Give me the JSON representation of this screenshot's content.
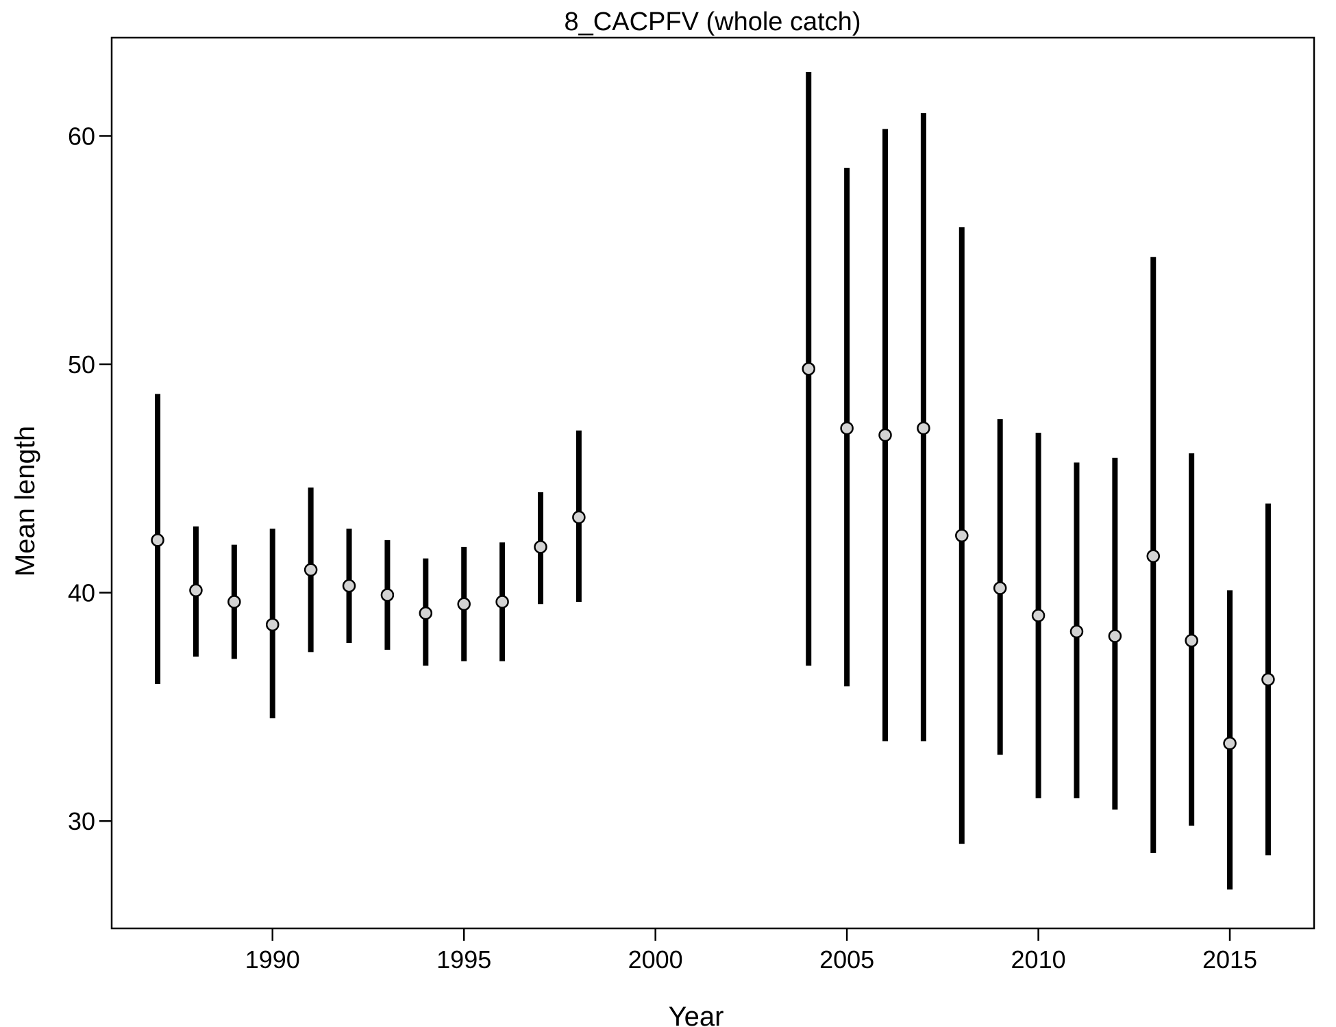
{
  "chart_data": {
    "type": "scatter",
    "title": "8_CACPFV (whole catch)",
    "xlabel": "Year",
    "ylabel": "Mean length",
    "xlim": [
      1985.8,
      2017.2
    ],
    "ylim": [
      25.3,
      64.3
    ],
    "xticks": [
      1990,
      1995,
      2000,
      2005,
      2010,
      2015
    ],
    "yticks": [
      30,
      40,
      50,
      60
    ],
    "grid": false,
    "legend": "none",
    "series": [
      {
        "marker_color": "#d3d3d3",
        "bar_color": "#000000",
        "points": [
          {
            "x": 1987,
            "y": 42.3,
            "low": 36.0,
            "high": 48.7
          },
          {
            "x": 1988,
            "y": 40.1,
            "low": 37.2,
            "high": 42.9
          },
          {
            "x": 1989,
            "y": 39.6,
            "low": 37.1,
            "high": 42.1
          },
          {
            "x": 1990,
            "y": 38.6,
            "low": 34.5,
            "high": 42.8
          },
          {
            "x": 1991,
            "y": 41.0,
            "low": 37.4,
            "high": 44.6
          },
          {
            "x": 1992,
            "y": 40.3,
            "low": 37.8,
            "high": 42.8
          },
          {
            "x": 1993,
            "y": 39.9,
            "low": 37.5,
            "high": 42.3
          },
          {
            "x": 1994,
            "y": 39.1,
            "low": 36.8,
            "high": 41.5
          },
          {
            "x": 1995,
            "y": 39.5,
            "low": 37.0,
            "high": 42.0
          },
          {
            "x": 1996,
            "y": 39.6,
            "low": 37.0,
            "high": 42.2
          },
          {
            "x": 1997,
            "y": 42.0,
            "low": 39.5,
            "high": 44.4
          },
          {
            "x": 1998,
            "y": 43.3,
            "low": 39.6,
            "high": 47.1
          },
          {
            "x": 2004,
            "y": 49.8,
            "low": 36.8,
            "high": 62.8
          },
          {
            "x": 2005,
            "y": 47.2,
            "low": 35.9,
            "high": 58.6
          },
          {
            "x": 2006,
            "y": 46.9,
            "low": 33.5,
            "high": 60.3
          },
          {
            "x": 2007,
            "y": 47.2,
            "low": 33.5,
            "high": 61.0
          },
          {
            "x": 2008,
            "y": 42.5,
            "low": 29.0,
            "high": 56.0
          },
          {
            "x": 2009,
            "y": 40.2,
            "low": 32.9,
            "high": 47.6
          },
          {
            "x": 2010,
            "y": 39.0,
            "low": 31.0,
            "high": 47.0
          },
          {
            "x": 2011,
            "y": 38.3,
            "low": 31.0,
            "high": 45.7
          },
          {
            "x": 2012,
            "y": 38.1,
            "low": 30.5,
            "high": 45.9
          },
          {
            "x": 2013,
            "y": 41.6,
            "low": 28.6,
            "high": 54.7
          },
          {
            "x": 2014,
            "y": 37.9,
            "low": 29.8,
            "high": 46.1
          },
          {
            "x": 2015,
            "y": 33.4,
            "low": 27.0,
            "high": 40.1
          },
          {
            "x": 2016,
            "y": 36.2,
            "low": 28.5,
            "high": 43.9
          }
        ]
      }
    ]
  }
}
